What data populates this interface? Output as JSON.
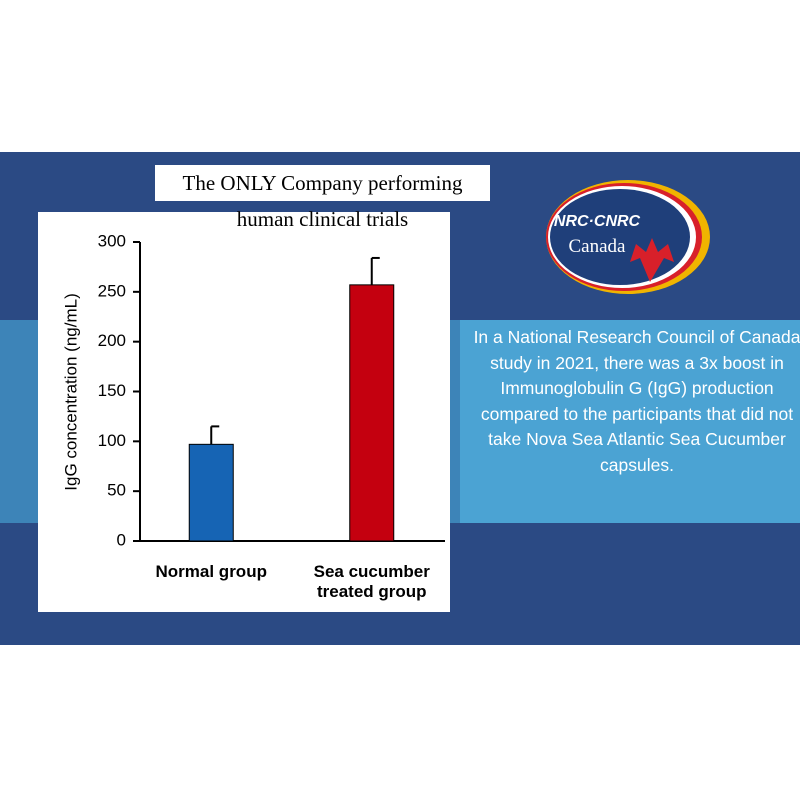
{
  "banner_title": "The ONLY Company performing human clinical trials",
  "logo": {
    "top": "NRC·CNRC",
    "bottom": "Canada"
  },
  "description": "In a National Research Council of Canada study in 2021, there was a 3x boost in Immunoglobulin G (IgG) production compared to the participants that did not take Nova Sea Atlantic Sea Cucumber capsules.",
  "chart_data": {
    "type": "bar",
    "y_label": "IgG concentration (ng/mL)",
    "categories": [
      "Normal group",
      "Sea cucumber treated group"
    ],
    "values": [
      97,
      257
    ],
    "errors": [
      18,
      27
    ],
    "colors": [
      "#1664b4",
      "#c4000f"
    ],
    "ylim": [
      0,
      300
    ],
    "yticks": [
      0,
      50,
      100,
      150,
      200,
      250,
      300
    ],
    "grid": false
  }
}
